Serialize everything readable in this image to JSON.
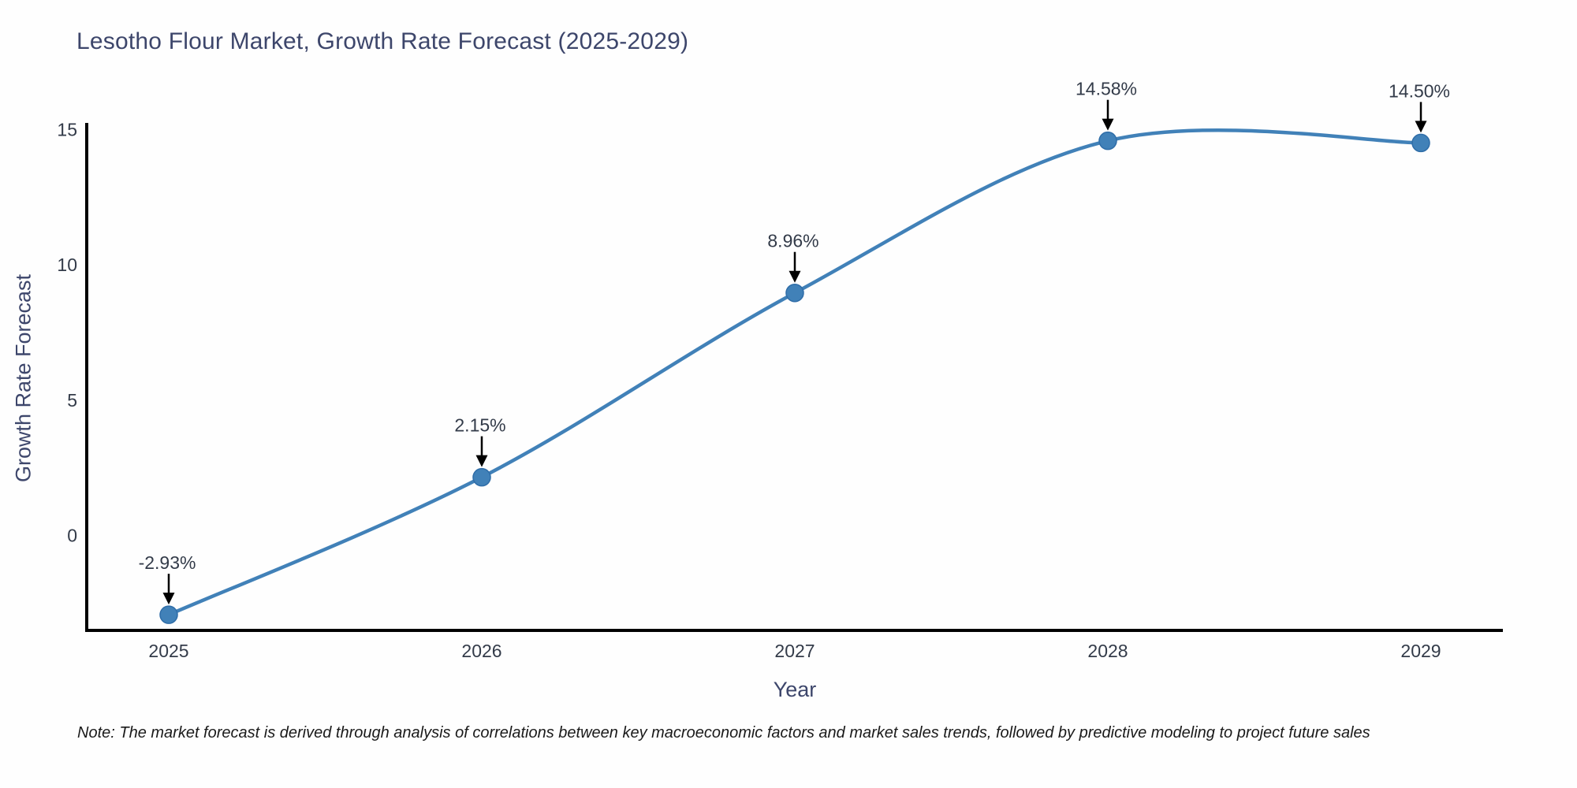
{
  "title": "Lesotho Flour Market, Growth Rate Forecast (2025-2029)",
  "note": "Note: The market forecast is derived through analysis of correlations between key macroeconomic factors and market sales trends, followed by predictive modeling to project future sales",
  "chart_data": {
    "type": "line",
    "title": "Lesotho Flour Market, Growth Rate Forecast (2025-2029)",
    "xlabel": "Year",
    "ylabel": "Growth Rate Forecast",
    "x": [
      2025,
      2026,
      2027,
      2028,
      2029
    ],
    "series": [
      {
        "name": "Growth Rate Forecast",
        "values": [
          -2.93,
          2.15,
          8.96,
          14.58,
          14.5
        ],
        "point_labels": [
          "-2.93%",
          "2.15%",
          "8.96%",
          "14.58%",
          "14.50%"
        ]
      }
    ],
    "yticks": [
      0,
      5,
      10,
      15
    ],
    "ylim": [
      -3.55,
      15.2
    ],
    "line_shape": "spline",
    "grid": false,
    "legend": "none",
    "colors": {
      "line": "#4181b8",
      "marker": "#4181b8",
      "marker_edge": "#2f6da8",
      "axis": "#000000",
      "tick_text": "#333b49",
      "annotation_text": "#333b49",
      "annotation_arrow": "#000000",
      "title_text": "#3d466b"
    }
  }
}
